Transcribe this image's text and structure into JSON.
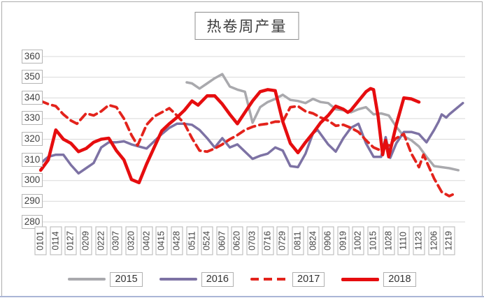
{
  "title": "热卷周产量",
  "colors": {
    "grid": "#d9d9d9",
    "tick_text": "#3f3f3f",
    "box_border": "#b5b5b5",
    "frame_border": "#adadad",
    "bottom_accent": "#aab5d6",
    "series_2015": "#a9a9ad",
    "series_2016": "#7d72a4",
    "series_2017": "#e3231c",
    "series_2018": "#e60d0f"
  },
  "chart_data": {
    "type": "line",
    "title": "热卷周产量",
    "xlabel": "",
    "ylabel": "",
    "ylim": [
      280,
      360
    ],
    "y_ticks": [
      360,
      350,
      340,
      330,
      320,
      310,
      300,
      290,
      280
    ],
    "grid": "horizontal",
    "legend_position": "bottom",
    "x_tick_labels": [
      "0101",
      "0114",
      "0127",
      "0209",
      "0222",
      "0307",
      "0320",
      "0402",
      "0415",
      "0428",
      "0511",
      "0524",
      "0607",
      "0620",
      "0703",
      "0716",
      "0729",
      "0811",
      "0824",
      "0906",
      "0919",
      "1002",
      "1015",
      "1028",
      "1110",
      "1123",
      "1206",
      "1219"
    ],
    "series": [
      {
        "name": "2015",
        "color": "#a9a9ad",
        "style": "solid",
        "width": 3.5,
        "points": [
          [
            9.65,
            347.5
          ],
          [
            10,
            347
          ],
          [
            10.5,
            344.5
          ],
          [
            11,
            347
          ],
          [
            11.5,
            349.5
          ],
          [
            12,
            351.5
          ],
          [
            12.5,
            345.5
          ],
          [
            13,
            344
          ],
          [
            13.5,
            343
          ],
          [
            14,
            328
          ],
          [
            14.5,
            335.5
          ],
          [
            15,
            338
          ],
          [
            15.5,
            339.5
          ],
          [
            16,
            341.5
          ],
          [
            16.5,
            339
          ],
          [
            17,
            338.5
          ],
          [
            17.5,
            337.5
          ],
          [
            18,
            339.5
          ],
          [
            18.5,
            338
          ],
          [
            19,
            337.5
          ],
          [
            19.5,
            334.5
          ],
          [
            20,
            334
          ],
          [
            20.5,
            333
          ],
          [
            21,
            334.5
          ],
          [
            21.5,
            335.5
          ],
          [
            22,
            332
          ],
          [
            22.5,
            332.5
          ],
          [
            23,
            331.5
          ],
          [
            23.5,
            326
          ],
          [
            24,
            321.5
          ],
          [
            24.5,
            319.5
          ],
          [
            25,
            316.5
          ],
          [
            25.5,
            311.5
          ],
          [
            26,
            307
          ],
          [
            26.5,
            306.5
          ],
          [
            27,
            306
          ],
          [
            27.6,
            305
          ]
        ]
      },
      {
        "name": "2016",
        "color": "#7d72a4",
        "style": "solid",
        "width": 3.5,
        "points": [
          [
            0,
            308.5
          ],
          [
            0.5,
            311.5
          ],
          [
            1,
            312.5
          ],
          [
            1.5,
            312.5
          ],
          [
            2,
            307.5
          ],
          [
            2.5,
            303.5
          ],
          [
            3,
            306
          ],
          [
            3.5,
            308.5
          ],
          [
            4,
            316
          ],
          [
            4.5,
            318.5
          ],
          [
            5,
            318.5
          ],
          [
            5.5,
            319
          ],
          [
            6,
            317.5
          ],
          [
            6.5,
            316.5
          ],
          [
            7,
            315.5
          ],
          [
            7.5,
            319
          ],
          [
            8,
            322.5
          ],
          [
            8.5,
            325.5
          ],
          [
            9,
            327.5
          ],
          [
            9.5,
            327.5
          ],
          [
            10,
            327
          ],
          [
            10.5,
            324.5
          ],
          [
            11,
            320.5
          ],
          [
            11.5,
            316
          ],
          [
            12,
            320.5
          ],
          [
            12.5,
            316
          ],
          [
            13,
            317.5
          ],
          [
            13.5,
            314
          ],
          [
            14,
            310.5
          ],
          [
            14.5,
            312
          ],
          [
            15,
            313
          ],
          [
            15.5,
            316
          ],
          [
            16,
            314.5
          ],
          [
            16.5,
            307
          ],
          [
            17,
            306.5
          ],
          [
            17.5,
            313
          ],
          [
            18,
            323
          ],
          [
            18.3,
            324.5
          ],
          [
            19,
            317.5
          ],
          [
            19.5,
            314
          ],
          [
            20,
            320.5
          ],
          [
            20.5,
            325.5
          ],
          [
            21,
            327.5
          ],
          [
            21.5,
            318
          ],
          [
            22,
            311.5
          ],
          [
            22.5,
            311.5
          ],
          [
            22.8,
            321
          ],
          [
            23.1,
            311
          ],
          [
            23.5,
            318
          ],
          [
            24,
            323.5
          ],
          [
            24.5,
            323.5
          ],
          [
            25,
            322.5
          ],
          [
            25.5,
            318.5
          ],
          [
            26,
            324.5
          ],
          [
            26.3,
            328.5
          ],
          [
            26.5,
            332
          ],
          [
            26.8,
            330.5
          ],
          [
            27,
            332
          ],
          [
            27.9,
            337.5
          ]
        ]
      },
      {
        "name": "2017",
        "color": "#e3231c",
        "style": "dashed",
        "width": 3.8,
        "points": [
          [
            0,
            338.5
          ],
          [
            0.5,
            337
          ],
          [
            1,
            336
          ],
          [
            1.5,
            332
          ],
          [
            2,
            329
          ],
          [
            2.4,
            327.5
          ],
          [
            3,
            332.5
          ],
          [
            3.5,
            331.5
          ],
          [
            4,
            333.5
          ],
          [
            4.5,
            336.5
          ],
          [
            5,
            335.5
          ],
          [
            5.5,
            330
          ],
          [
            6,
            322
          ],
          [
            6.4,
            317
          ],
          [
            7,
            327
          ],
          [
            7.5,
            331
          ],
          [
            8,
            333
          ],
          [
            8.5,
            335
          ],
          [
            9,
            331.5
          ],
          [
            9.5,
            327.5
          ],
          [
            10,
            320.5
          ],
          [
            10.5,
            314.5
          ],
          [
            11,
            314
          ],
          [
            11.5,
            315.5
          ],
          [
            12,
            317.5
          ],
          [
            12.5,
            320
          ],
          [
            13,
            322
          ],
          [
            13.5,
            324.5
          ],
          [
            14,
            326
          ],
          [
            14.5,
            327
          ],
          [
            15,
            327.5
          ],
          [
            15.5,
            328.5
          ],
          [
            16,
            328.5
          ],
          [
            16.5,
            335.5
          ],
          [
            17,
            336
          ],
          [
            17.5,
            333.5
          ],
          [
            18,
            332.5
          ],
          [
            18.5,
            330.5
          ],
          [
            19,
            329
          ],
          [
            19.5,
            326.5
          ],
          [
            20,
            327
          ],
          [
            20.5,
            325.5
          ],
          [
            21,
            323.5
          ],
          [
            21.5,
            319.5
          ],
          [
            22,
            316
          ],
          [
            22.5,
            314.5
          ],
          [
            23,
            317
          ],
          [
            23.5,
            320.5
          ],
          [
            24,
            322.5
          ],
          [
            24.5,
            313
          ],
          [
            25,
            306.5
          ],
          [
            25.3,
            312.5
          ],
          [
            26,
            301
          ],
          [
            26.5,
            294.5
          ],
          [
            27,
            292.5
          ],
          [
            27.3,
            293.5
          ]
        ]
      },
      {
        "name": "2018",
        "color": "#e60d0f",
        "style": "solid",
        "width": 4.6,
        "points": [
          [
            0,
            305
          ],
          [
            0.5,
            310
          ],
          [
            1,
            324.5
          ],
          [
            1.5,
            320
          ],
          [
            2,
            318
          ],
          [
            2.5,
            314
          ],
          [
            3,
            315.5
          ],
          [
            3.5,
            318.5
          ],
          [
            4,
            320
          ],
          [
            4.5,
            320.5
          ],
          [
            5,
            314.5
          ],
          [
            5.5,
            310
          ],
          [
            6,
            300.5
          ],
          [
            6.5,
            299
          ],
          [
            7,
            308
          ],
          [
            7.5,
            316
          ],
          [
            8,
            324
          ],
          [
            8.5,
            327.5
          ],
          [
            9,
            330.5
          ],
          [
            9.5,
            334
          ],
          [
            10,
            338.5
          ],
          [
            10.4,
            336.5
          ],
          [
            11,
            341
          ],
          [
            11.5,
            341
          ],
          [
            12,
            337
          ],
          [
            12.5,
            332
          ],
          [
            13,
            327.5
          ],
          [
            13.5,
            333
          ],
          [
            14,
            338.5
          ],
          [
            14.5,
            343
          ],
          [
            15,
            344
          ],
          [
            15.5,
            343.5
          ],
          [
            16,
            328.5
          ],
          [
            16.5,
            318
          ],
          [
            17,
            313.5
          ],
          [
            17.5,
            318.5
          ],
          [
            18,
            323
          ],
          [
            18.5,
            328
          ],
          [
            19,
            331.5
          ],
          [
            19.5,
            336
          ],
          [
            20,
            334.5
          ],
          [
            20.3,
            333
          ],
          [
            20.5,
            334
          ],
          [
            21,
            338.5
          ],
          [
            21.5,
            343
          ],
          [
            21.8,
            344.5
          ],
          [
            22,
            344
          ],
          [
            22.3,
            331
          ],
          [
            22.6,
            312.5
          ],
          [
            22.8,
            319.5
          ],
          [
            23,
            311.5
          ],
          [
            23.5,
            327
          ],
          [
            24,
            340
          ],
          [
            24.5,
            339.5
          ],
          [
            25,
            338
          ]
        ]
      }
    ],
    "legend_labels": [
      "2015",
      "2016",
      "2017",
      "2018"
    ]
  }
}
